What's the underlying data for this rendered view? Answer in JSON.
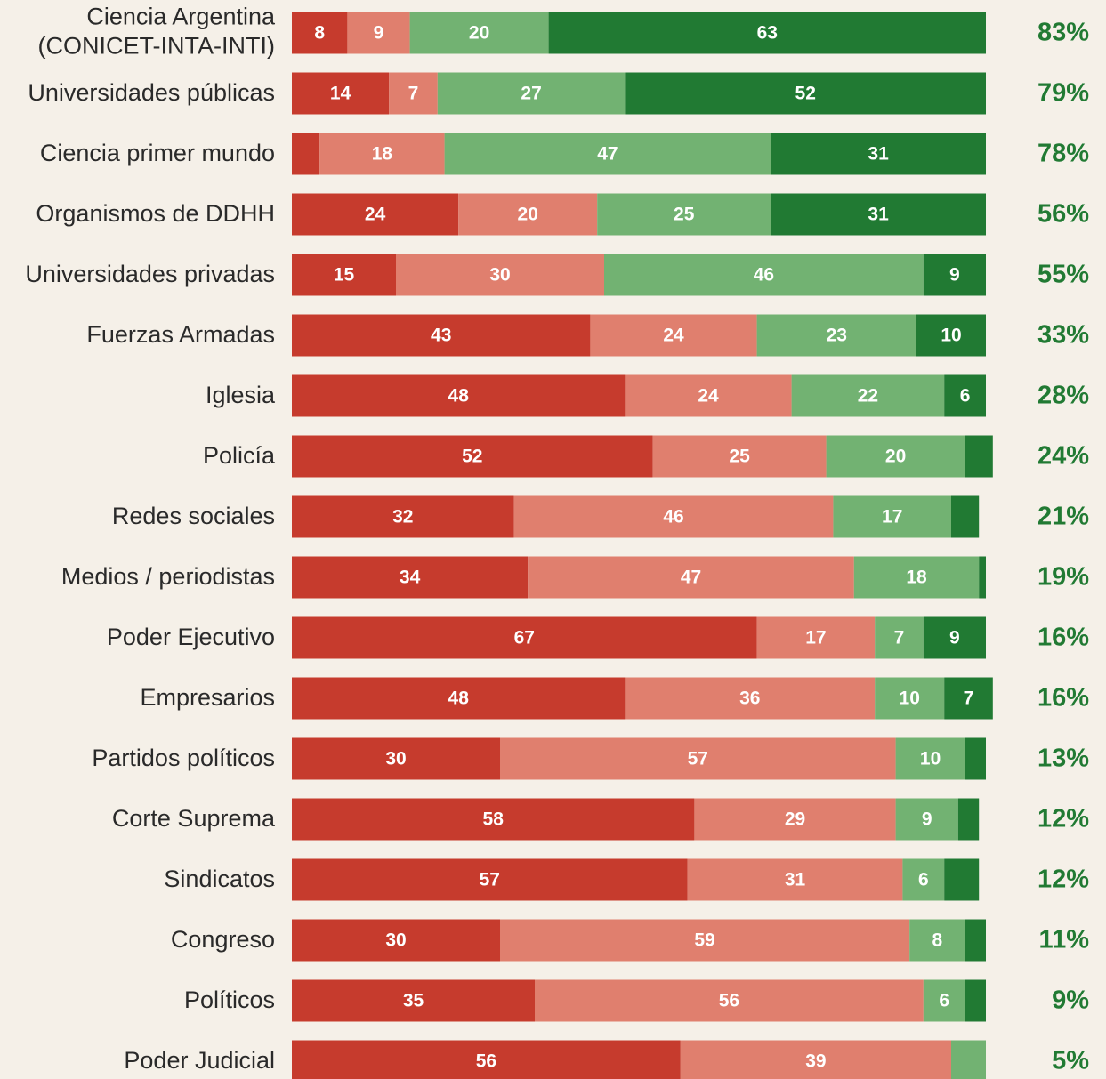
{
  "chart_data": {
    "type": "stacked_barh",
    "categories": [
      [
        "Ciencia Argentina",
        "(CONICET-INTA-INTI)"
      ],
      "Universidades públicas",
      "Ciencia primer mundo",
      "Organismos de DDHH",
      "Universidades privadas",
      "Fuerzas Armadas",
      "Iglesia",
      "Policía",
      "Redes sociales",
      "Medios / periodistas",
      "Poder Ejecutivo",
      "Empresarios",
      "Partidos políticos",
      "Corte Suprema",
      "Sindicatos",
      "Congreso",
      "Políticos",
      "Poder Judicial"
    ],
    "xlim": [
      0,
      100
    ],
    "series": [
      {
        "color": "#c63b2d",
        "values": [
          8,
          14,
          4,
          24,
          15,
          43,
          48,
          52,
          32,
          34,
          67,
          48,
          30,
          58,
          57,
          30,
          35,
          56
        ]
      },
      {
        "color": "#e07f6e",
        "values": [
          9,
          7,
          18,
          20,
          30,
          24,
          24,
          25,
          46,
          47,
          17,
          36,
          57,
          29,
          31,
          59,
          56,
          39
        ]
      },
      {
        "color": "#72b272",
        "values": [
          20,
          27,
          47,
          25,
          46,
          23,
          22,
          20,
          17,
          18,
          7,
          10,
          10,
          9,
          6,
          8,
          6,
          5
        ]
      },
      {
        "color": "#217a33",
        "values": [
          63,
          52,
          31,
          31,
          9,
          10,
          6,
          4,
          4,
          1,
          9,
          7,
          3,
          3,
          5,
          3,
          3,
          0
        ]
      }
    ],
    "totals": {
      "color": "#217a33",
      "values": [
        83,
        79,
        78,
        56,
        55,
        33,
        28,
        24,
        21,
        19,
        16,
        16,
        13,
        12,
        12,
        11,
        9,
        5
      ],
      "value_labels": [
        "83%",
        "79%",
        "78%",
        "56%",
        "55%",
        "33%",
        "28%",
        "24%",
        "21%",
        "19%",
        "16%",
        "16%",
        "13%",
        "12%",
        "12%",
        "11%",
        "9%",
        "5%"
      ]
    }
  }
}
